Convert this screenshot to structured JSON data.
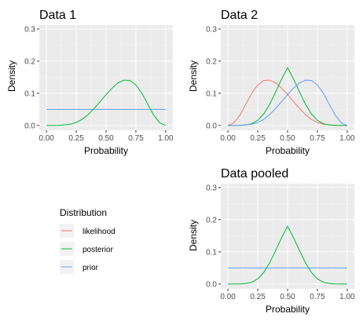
{
  "chart_data": {
    "type": "line",
    "layout": "facets",
    "y_tick_labels": [
      "0.0",
      "0.1",
      "0.2",
      "0.3"
    ],
    "x_tick_labels": [
      "0.00",
      "0.25",
      "0.50",
      "0.75",
      "1.00"
    ],
    "legend": {
      "title": "Distribution",
      "items": [
        {
          "label": "likelihood",
          "color": "#F8766D"
        },
        {
          "label": "posterior",
          "color": "#00BA38"
        },
        {
          "label": "prior",
          "color": "#619CFF"
        }
      ],
      "position": "bottom-left"
    },
    "grid": true,
    "background": "#EBEBEB",
    "panels": [
      {
        "id": "p1",
        "title": "Data 1",
        "xlabel": "Probability",
        "ylabel": "Density",
        "xlim": [
          0,
          1
        ],
        "ylim": [
          0,
          0.3
        ],
        "series": [
          {
            "name": "prior",
            "color": "#619CFF",
            "points": [
              [
                0,
                0.05
              ],
              [
                1,
                0.05
              ]
            ]
          },
          {
            "name": "posterior",
            "color": "#00BA38",
            "points": [
              [
                0,
                0
              ],
              [
                0.1,
                0.0003
              ],
              [
                0.2,
                0.004
              ],
              [
                0.25,
                0.0095
              ],
              [
                0.3,
                0.019
              ],
              [
                0.35,
                0.034
              ],
              [
                0.4,
                0.053
              ],
              [
                0.45,
                0.074
              ],
              [
                0.5,
                0.096
              ],
              [
                0.55,
                0.116
              ],
              [
                0.6,
                0.132
              ],
              [
                0.65,
                0.141
              ],
              [
                0.7,
                0.14
              ],
              [
                0.75,
                0.126
              ],
              [
                0.8,
                0.1
              ],
              [
                0.85,
                0.066
              ],
              [
                0.9,
                0.032
              ],
              [
                0.95,
                0.008
              ],
              [
                1,
                0
              ]
            ]
          }
        ]
      },
      {
        "id": "p2",
        "title": "Data 2",
        "xlabel": "Probability",
        "ylabel": "Density",
        "xlim": [
          0,
          1
        ],
        "ylim": [
          0,
          0.3
        ],
        "series": [
          {
            "name": "likelihood",
            "color": "#F8766D",
            "points": [
              [
                0,
                0
              ],
              [
                0.05,
                0.008
              ],
              [
                0.1,
                0.032
              ],
              [
                0.15,
                0.066
              ],
              [
                0.2,
                0.1
              ],
              [
                0.25,
                0.126
              ],
              [
                0.3,
                0.14
              ],
              [
                0.35,
                0.141
              ],
              [
                0.4,
                0.132
              ],
              [
                0.45,
                0.116
              ],
              [
                0.5,
                0.096
              ],
              [
                0.55,
                0.074
              ],
              [
                0.6,
                0.053
              ],
              [
                0.65,
                0.034
              ],
              [
                0.7,
                0.019
              ],
              [
                0.75,
                0.0095
              ],
              [
                0.8,
                0.004
              ],
              [
                0.9,
                0.0003
              ],
              [
                1,
                0
              ]
            ]
          },
          {
            "name": "posterior",
            "color": "#00BA38",
            "points": [
              [
                0,
                0
              ],
              [
                0.1,
                0.0003
              ],
              [
                0.15,
                0.0015
              ],
              [
                0.2,
                0.0055
              ],
              [
                0.25,
                0.016
              ],
              [
                0.3,
                0.036
              ],
              [
                0.35,
                0.066
              ],
              [
                0.4,
                0.104
              ],
              [
                0.45,
                0.144
              ],
              [
                0.5,
                0.18
              ],
              [
                0.55,
                0.144
              ],
              [
                0.6,
                0.104
              ],
              [
                0.65,
                0.066
              ],
              [
                0.7,
                0.036
              ],
              [
                0.75,
                0.016
              ],
              [
                0.8,
                0.0055
              ],
              [
                0.85,
                0.0015
              ],
              [
                0.9,
                0.0003
              ],
              [
                1,
                0
              ]
            ]
          },
          {
            "name": "prior",
            "color": "#619CFF",
            "points": [
              [
                0,
                0
              ],
              [
                0.1,
                0.0003
              ],
              [
                0.2,
                0.004
              ],
              [
                0.25,
                0.0095
              ],
              [
                0.3,
                0.019
              ],
              [
                0.35,
                0.034
              ],
              [
                0.4,
                0.053
              ],
              [
                0.45,
                0.074
              ],
              [
                0.5,
                0.096
              ],
              [
                0.55,
                0.116
              ],
              [
                0.6,
                0.132
              ],
              [
                0.65,
                0.141
              ],
              [
                0.7,
                0.14
              ],
              [
                0.75,
                0.126
              ],
              [
                0.8,
                0.1
              ],
              [
                0.85,
                0.066
              ],
              [
                0.9,
                0.032
              ],
              [
                0.95,
                0.008
              ],
              [
                1,
                0
              ]
            ]
          }
        ]
      },
      {
        "id": "p3",
        "title": "Data pooled",
        "xlabel": "Probability",
        "ylabel": "Density",
        "xlim": [
          0,
          1
        ],
        "ylim": [
          0,
          0.3
        ],
        "series": [
          {
            "name": "prior",
            "color": "#619CFF",
            "points": [
              [
                0,
                0.05
              ],
              [
                1,
                0.05
              ]
            ]
          },
          {
            "name": "posterior",
            "color": "#00BA38",
            "points": [
              [
                0,
                0
              ],
              [
                0.1,
                0.0003
              ],
              [
                0.15,
                0.0015
              ],
              [
                0.2,
                0.0055
              ],
              [
                0.25,
                0.016
              ],
              [
                0.3,
                0.036
              ],
              [
                0.35,
                0.066
              ],
              [
                0.4,
                0.104
              ],
              [
                0.45,
                0.144
              ],
              [
                0.5,
                0.18
              ],
              [
                0.55,
                0.144
              ],
              [
                0.6,
                0.104
              ],
              [
                0.65,
                0.066
              ],
              [
                0.7,
                0.036
              ],
              [
                0.75,
                0.016
              ],
              [
                0.8,
                0.0055
              ],
              [
                0.85,
                0.0015
              ],
              [
                0.9,
                0.0003
              ],
              [
                1,
                0
              ]
            ]
          }
        ]
      }
    ]
  }
}
